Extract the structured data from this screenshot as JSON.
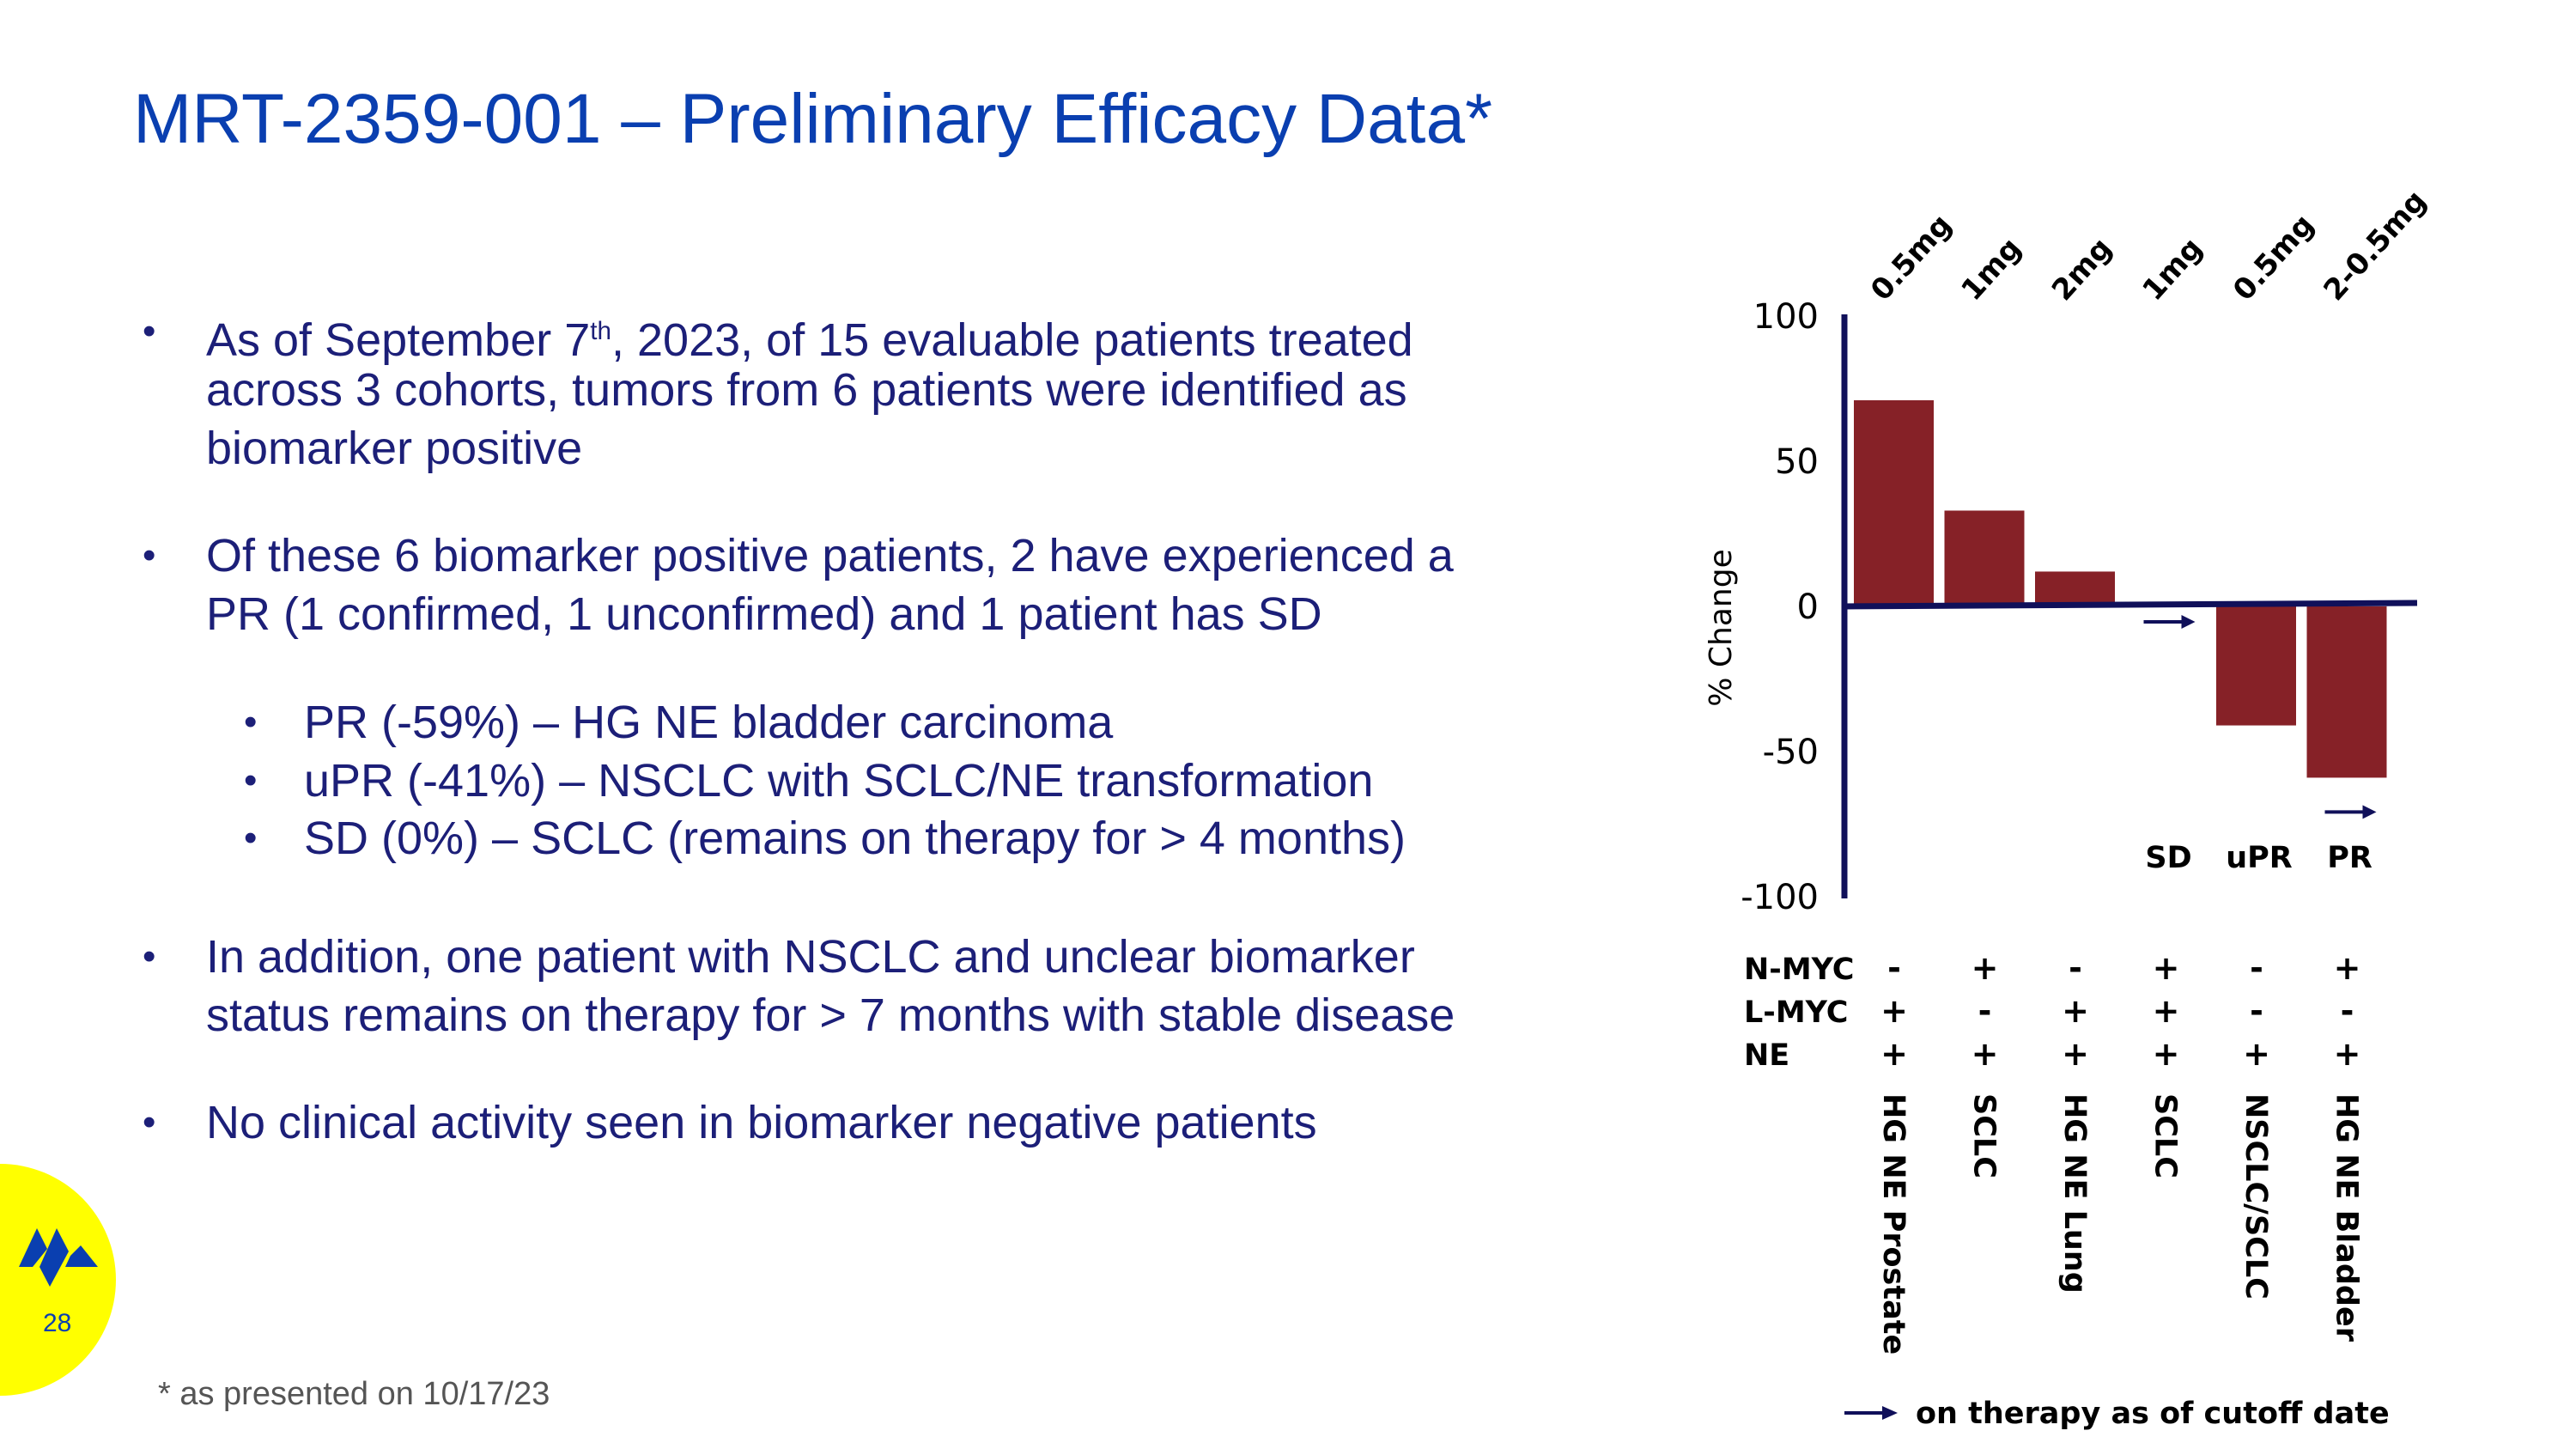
{
  "header": {
    "title": "MRT-2359-001 – Preliminary Efficacy Data*"
  },
  "bullets": [
    {
      "level": 1,
      "lines": [
        "As of September 7th, 2023, of 15 evaluable patients treated",
        "across 3 cohorts, tumors from 6 patients were identified as",
        "biomarker positive"
      ]
    },
    {
      "level": 1,
      "lines": [
        "Of these 6 biomarker positive patients, 2 have experienced a",
        "PR (1 confirmed, 1 unconfirmed) and 1 patient has SD"
      ]
    },
    {
      "level": 2,
      "lines": [
        "PR (-59%) – HG NE bladder carcinoma"
      ]
    },
    {
      "level": 2,
      "lines": [
        "uPR (-41%) – NSCLC with SCLC/NE transformation"
      ]
    },
    {
      "level": 2,
      "lines": [
        "SD (0%) – SCLC (remains on therapy for > 4 months)"
      ]
    },
    {
      "level": 1,
      "lines": [
        "In addition, one patient with NSCLC and unclear biomarker",
        "status remains on therapy for > 7 months with stable disease"
      ]
    },
    {
      "level": 1,
      "lines": [
        "No clinical activity seen in biomarker negative patients"
      ]
    }
  ],
  "footnote": "* as presented on 10/17/23",
  "page_number": "28",
  "colors": {
    "title": "#0a3fb0",
    "text": "#1c1f78",
    "bar": "#862127",
    "axis": "#10105a",
    "logo_circle": "#ffff00",
    "logo": "#0a3fb0"
  },
  "chart_data": {
    "type": "bar",
    "ylabel": "% Change",
    "ylim": [
      -100,
      100
    ],
    "yticks": [
      100,
      50,
      0,
      -50,
      -100
    ],
    "categories": [
      "HG NE Prostate",
      "SCLC",
      "HG NE Lung",
      "SCLC",
      "NSCLC/SCLC",
      "HG NE Bladder"
    ],
    "doses": [
      "0.5mg",
      "1mg",
      "2mg",
      "1mg",
      "0.5mg",
      "2-0.5mg"
    ],
    "values": [
      71,
      33,
      12,
      0,
      -41,
      -59
    ],
    "responses": [
      "",
      "",
      "",
      "SD",
      "uPR",
      "PR"
    ],
    "on_therapy": [
      false,
      false,
      false,
      true,
      false,
      true
    ],
    "markers": [
      {
        "name": "N-MYC",
        "values": [
          "-",
          "+",
          "-",
          "+",
          "-",
          "+"
        ]
      },
      {
        "name": "L-MYC",
        "values": [
          "+",
          "-",
          "+",
          "+",
          "-",
          "-"
        ]
      },
      {
        "name": "NE",
        "values": [
          "+",
          "+",
          "+",
          "+",
          "+",
          "+"
        ]
      }
    ],
    "legend": {
      "arrow": "on therapy as of cutoff date",
      "placement": "bottom"
    },
    "grid": false
  }
}
